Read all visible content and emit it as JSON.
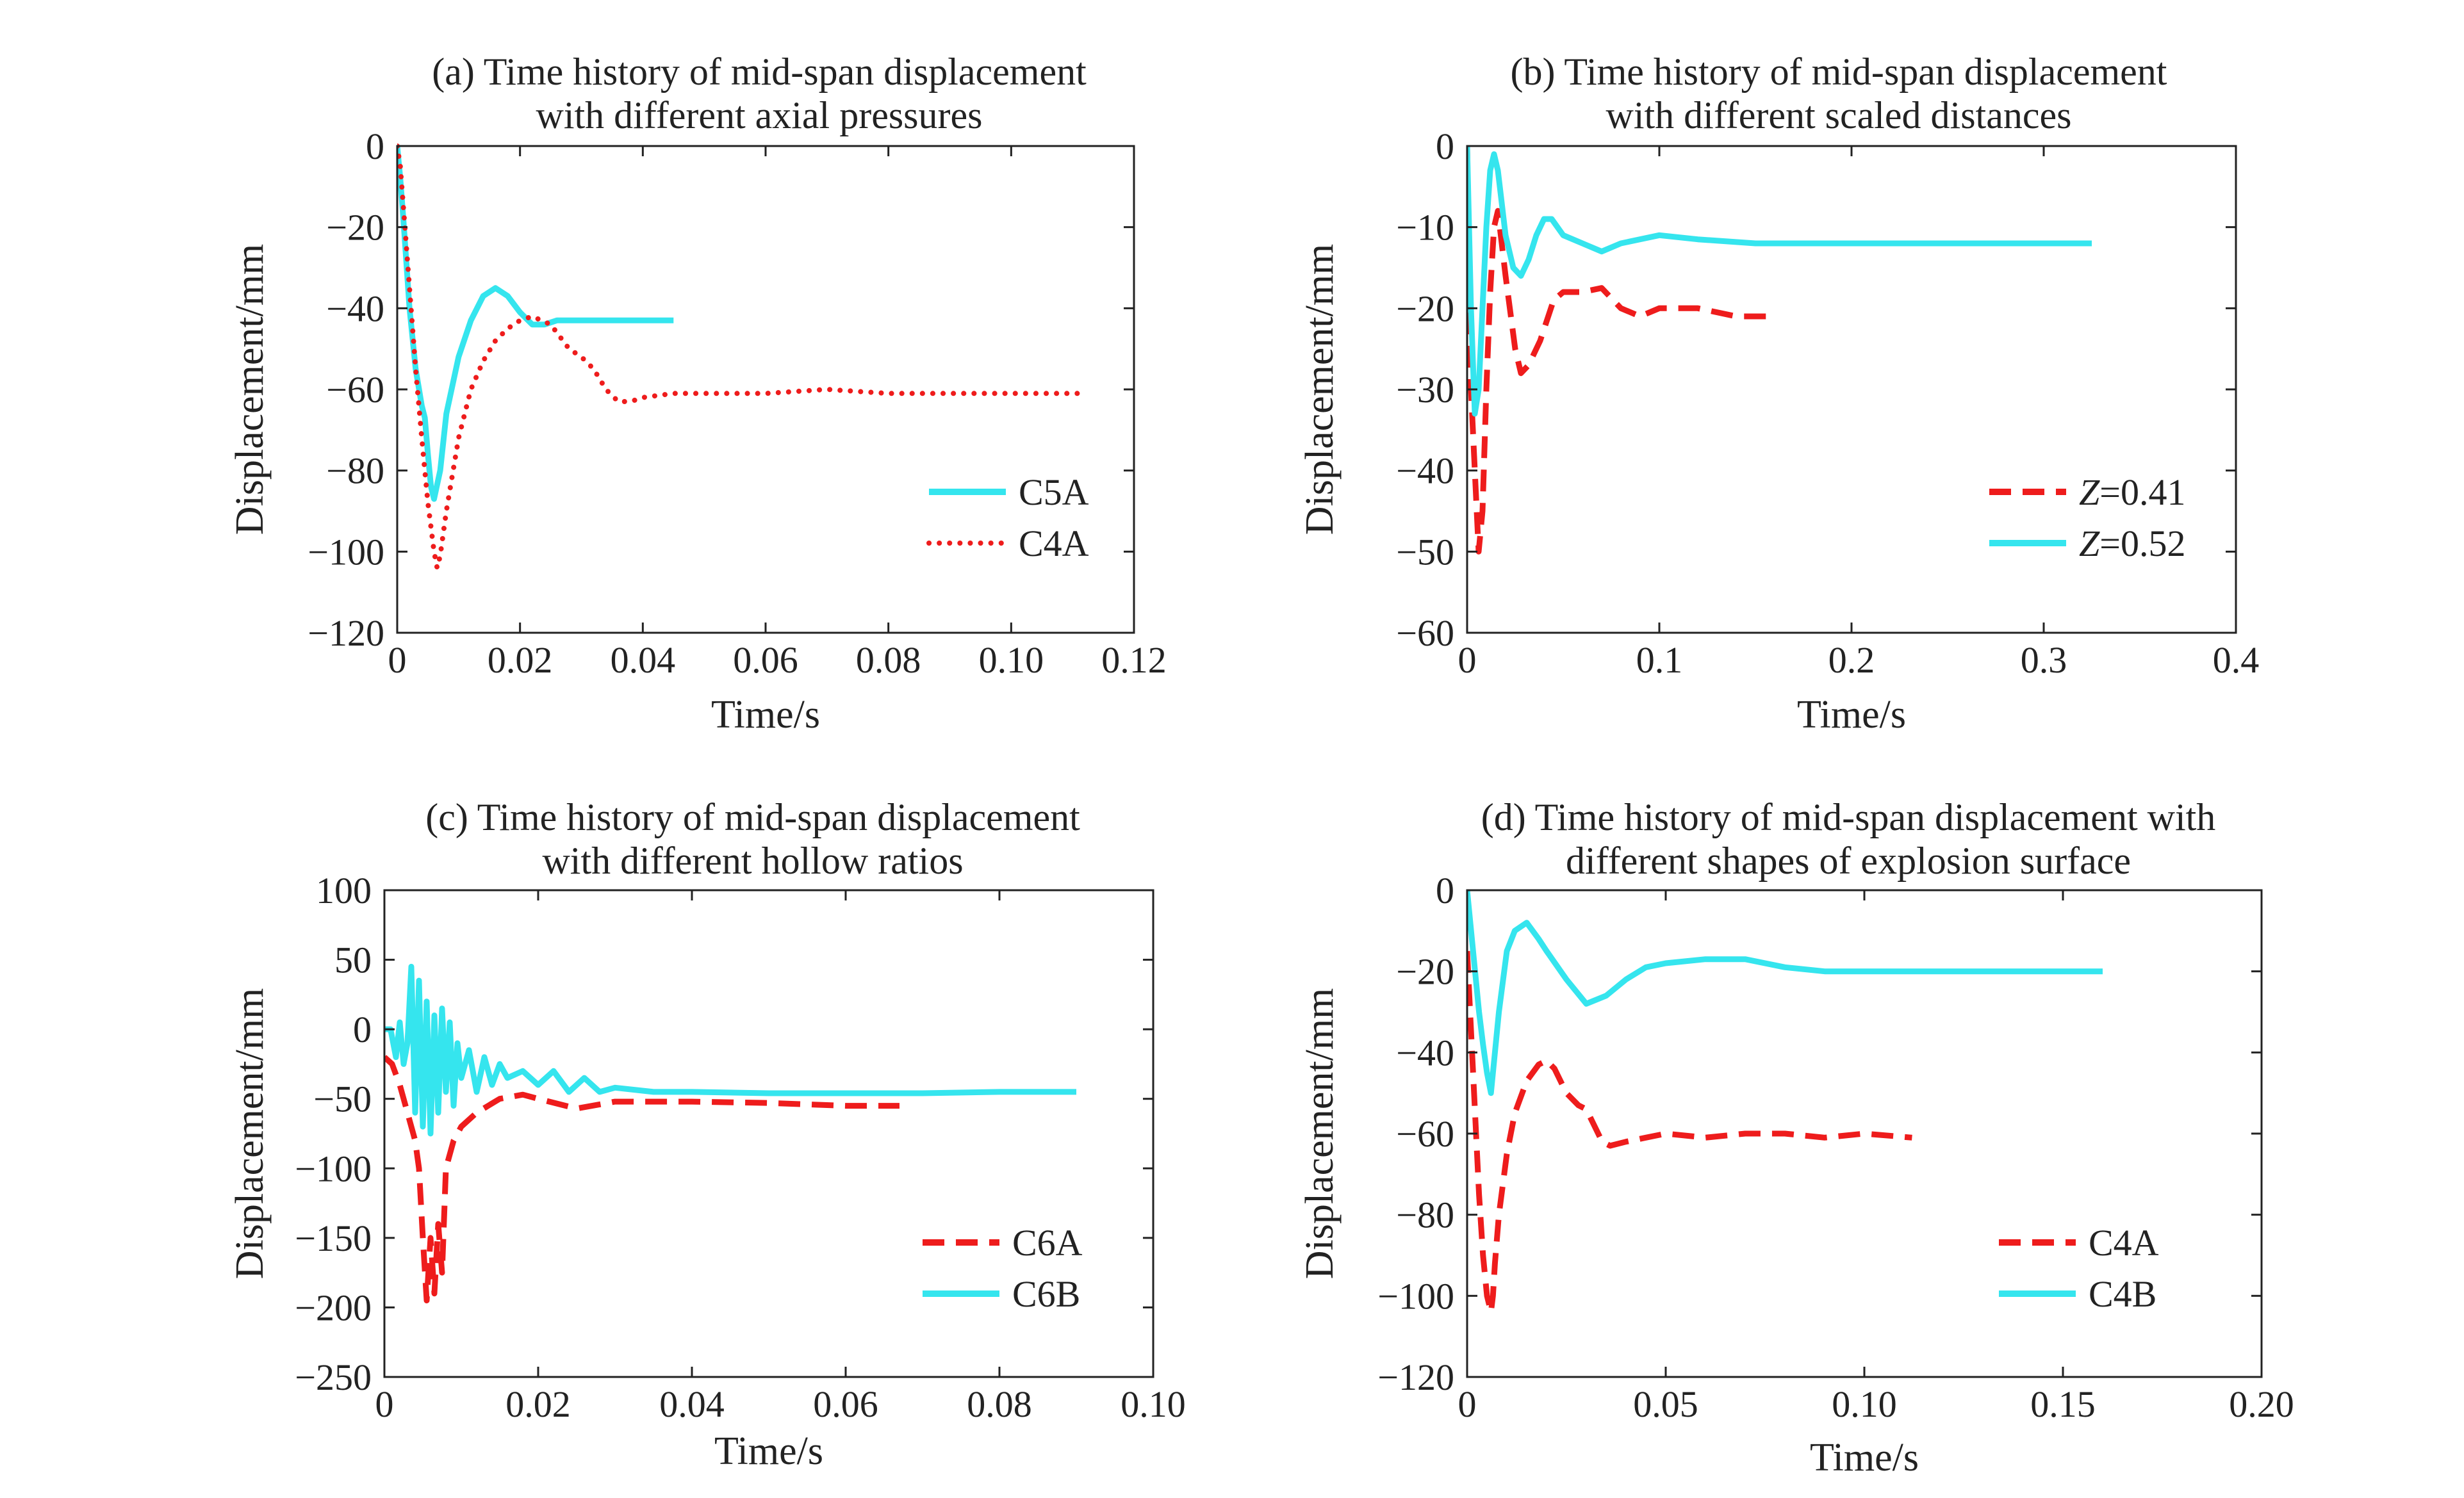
{
  "colors": {
    "red": "#ee1c1c",
    "cyan": "#35e5ee",
    "axis": "#222222"
  },
  "chart_data": [
    {
      "type": "line",
      "title_lines": [
        "(a) Time history of mid-span displacement",
        "with different axial pressures"
      ],
      "xlabel": "Time/s",
      "ylabel": "Displacement/mm",
      "xlim": [
        0,
        0.12
      ],
      "ylim": [
        -120,
        0
      ],
      "xticks": [
        0,
        0.02,
        0.04,
        0.06,
        0.08,
        0.1,
        0.12
      ],
      "xtick_labels": [
        "0",
        "0.02",
        "0.04",
        "0.06",
        "0.08",
        "0.10",
        "0.12"
      ],
      "yticks": [
        0,
        -20,
        -40,
        -60,
        -80,
        -100,
        -120
      ],
      "ytick_labels": [
        "0",
        "−20",
        "−40",
        "−60",
        "−80",
        "−100",
        "−120"
      ],
      "legend_position": "lower-right",
      "series": [
        {
          "name": "C5A",
          "color": "cyan",
          "style": "solid",
          "x": [
            0,
            0.0005,
            0.001,
            0.002,
            0.003,
            0.004,
            0.0045,
            0.005,
            0.0055,
            0.006,
            0.007,
            0.008,
            0.01,
            0.012,
            0.014,
            0.016,
            0.018,
            0.02,
            0.022,
            0.024,
            0.026,
            0.03,
            0.035,
            0.04,
            0.045
          ],
          "y": [
            0,
            -8,
            -18,
            -40,
            -55,
            -64,
            -67,
            -76,
            -84,
            -87,
            -80,
            -66,
            -52,
            -43,
            -37,
            -35,
            -37,
            -41,
            -44,
            -44,
            -43,
            -43,
            -43,
            -43,
            -43
          ]
        },
        {
          "name": "C4A",
          "color": "red",
          "style": "dotted",
          "x": [
            0,
            0.0005,
            0.001,
            0.002,
            0.003,
            0.004,
            0.005,
            0.006,
            0.0065,
            0.007,
            0.008,
            0.01,
            0.012,
            0.014,
            0.016,
            0.018,
            0.02,
            0.022,
            0.025,
            0.028,
            0.03,
            0.032,
            0.034,
            0.036,
            0.038,
            0.04,
            0.045,
            0.05,
            0.06,
            0.07,
            0.08,
            0.09,
            0.1,
            0.11,
            0.112
          ],
          "y": [
            0,
            -5,
            -15,
            -35,
            -55,
            -72,
            -88,
            -100,
            -104,
            -101,
            -90,
            -72,
            -60,
            -53,
            -48,
            -45,
            -43,
            -42,
            -44,
            -50,
            -52,
            -55,
            -60,
            -63,
            -63,
            -62,
            -61,
            -61,
            -61,
            -60,
            -61,
            -61,
            -61,
            -61,
            -61
          ]
        }
      ]
    },
    {
      "type": "line",
      "title_lines": [
        "(b) Time history of mid-span displacement",
        "with different scaled distances"
      ],
      "xlabel": "Time/s",
      "ylabel": "Displacement/mm",
      "xlim": [
        0,
        0.4
      ],
      "ylim": [
        -60,
        0
      ],
      "xticks": [
        0,
        0.1,
        0.2,
        0.3,
        0.4
      ],
      "xtick_labels": [
        "0",
        "0.1",
        "0.2",
        "0.3",
        "0.4"
      ],
      "yticks": [
        0,
        -10,
        -20,
        -30,
        -40,
        -50,
        -60
      ],
      "ytick_labels": [
        "0",
        "−10",
        "−20",
        "−30",
        "−40",
        "−50",
        "−60"
      ],
      "legend_position": "lower-right",
      "series": [
        {
          "name": "Z=0.41",
          "name_var": "Z",
          "name_rest": "=0.41",
          "color": "red",
          "style": "dashed",
          "x": [
            0,
            0.002,
            0.004,
            0.006,
            0.008,
            0.01,
            0.012,
            0.014,
            0.016,
            0.018,
            0.02,
            0.025,
            0.028,
            0.032,
            0.038,
            0.045,
            0.05,
            0.06,
            0.07,
            0.08,
            0.09,
            0.1,
            0.12,
            0.14,
            0.16
          ],
          "y": [
            0,
            -30,
            -40,
            -50,
            -45,
            -30,
            -18,
            -10,
            -8,
            -12,
            -16,
            -25,
            -28,
            -27,
            -24,
            -19,
            -18,
            -18,
            -17.5,
            -20,
            -21,
            -20,
            -20,
            -21,
            -21
          ]
        },
        {
          "name": "Z=0.52",
          "name_var": "Z",
          "name_rest": "=0.52",
          "color": "cyan",
          "style": "solid",
          "x": [
            0,
            0.001,
            0.002,
            0.004,
            0.006,
            0.008,
            0.01,
            0.012,
            0.014,
            0.016,
            0.018,
            0.02,
            0.024,
            0.028,
            0.032,
            0.036,
            0.04,
            0.044,
            0.05,
            0.06,
            0.07,
            0.08,
            0.1,
            0.12,
            0.15,
            0.2,
            0.25,
            0.3,
            0.325
          ],
          "y": [
            0,
            -10,
            -20,
            -33,
            -30,
            -20,
            -10,
            -3,
            -1,
            -3,
            -7,
            -11,
            -15,
            -16,
            -14,
            -11,
            -9,
            -9,
            -11,
            -12,
            -13,
            -12,
            -11,
            -11.5,
            -12,
            -12,
            -12,
            -12,
            -12
          ]
        }
      ]
    },
    {
      "type": "line",
      "title_lines": [
        "(c) Time history of mid-span displacement",
        "with different hollow ratios"
      ],
      "xlabel": "Time/s",
      "ylabel": "Displacement/mm",
      "xlim": [
        0,
        0.1
      ],
      "ylim": [
        -250,
        100
      ],
      "xticks": [
        0,
        0.02,
        0.04,
        0.06,
        0.08,
        0.1
      ],
      "xtick_labels": [
        "0",
        "0.02",
        "0.04",
        "0.06",
        "0.08",
        "0.10"
      ],
      "yticks": [
        100,
        50,
        0,
        -50,
        -100,
        -150,
        -200,
        -250
      ],
      "ytick_labels": [
        "100",
        "50",
        "0",
        "−50",
        "−100",
        "−150",
        "−200",
        "−250"
      ],
      "legend_position": "lower-right",
      "series": [
        {
          "name": "C6A",
          "color": "red",
          "style": "dashed",
          "x": [
            0,
            0.001,
            0.002,
            0.003,
            0.004,
            0.0045,
            0.005,
            0.0055,
            0.006,
            0.0065,
            0.007,
            0.0075,
            0.008,
            0.009,
            0.01,
            0.012,
            0.015,
            0.018,
            0.02,
            0.025,
            0.03,
            0.04,
            0.05,
            0.06,
            0.067
          ],
          "y": [
            -20,
            -25,
            -40,
            -60,
            -80,
            -100,
            -150,
            -195,
            -150,
            -190,
            -140,
            -175,
            -100,
            -80,
            -70,
            -60,
            -50,
            -47,
            -50,
            -57,
            -52,
            -52,
            -53,
            -55,
            -55
          ]
        },
        {
          "name": "C6B",
          "color": "cyan",
          "style": "solid",
          "x": [
            0,
            0.0008,
            0.0015,
            0.002,
            0.0025,
            0.003,
            0.0035,
            0.004,
            0.0045,
            0.005,
            0.0055,
            0.006,
            0.0065,
            0.007,
            0.0075,
            0.008,
            0.0085,
            0.009,
            0.0095,
            0.01,
            0.011,
            0.012,
            0.013,
            0.014,
            0.015,
            0.016,
            0.018,
            0.02,
            0.022,
            0.024,
            0.026,
            0.028,
            0.03,
            0.035,
            0.04,
            0.05,
            0.06,
            0.07,
            0.08,
            0.09
          ],
          "y": [
            0,
            0,
            -20,
            5,
            -25,
            -10,
            45,
            -60,
            35,
            -70,
            20,
            -75,
            10,
            -60,
            15,
            -45,
            5,
            -55,
            -10,
            -35,
            -15,
            -45,
            -20,
            -40,
            -25,
            -35,
            -30,
            -40,
            -30,
            -45,
            -35,
            -45,
            -42,
            -45,
            -45,
            -46,
            -46,
            -46,
            -45,
            -45
          ]
        }
      ]
    },
    {
      "type": "line",
      "title_lines": [
        "(d) Time history of mid-span displacement with",
        "different shapes of explosion surface"
      ],
      "xlabel": "Time/s",
      "ylabel": "Displacement/mm",
      "xlim": [
        0,
        0.2
      ],
      "ylim": [
        -120,
        0
      ],
      "xticks": [
        0,
        0.05,
        0.1,
        0.15,
        0.2
      ],
      "xtick_labels": [
        "0",
        "0.05",
        "0.10",
        "0.15",
        "0.20"
      ],
      "yticks": [
        0,
        -20,
        -40,
        -60,
        -80,
        -100,
        -120
      ],
      "ytick_labels": [
        "0",
        "−20",
        "−40",
        "−60",
        "−80",
        "−100",
        "−120"
      ],
      "legend_position": "lower-right",
      "series": [
        {
          "name": "C4A",
          "color": "red",
          "style": "dashed",
          "x": [
            0,
            0.001,
            0.002,
            0.003,
            0.004,
            0.005,
            0.006,
            0.0065,
            0.007,
            0.008,
            0.01,
            0.012,
            0.015,
            0.018,
            0.02,
            0.022,
            0.025,
            0.028,
            0.03,
            0.032,
            0.034,
            0.036,
            0.04,
            0.045,
            0.05,
            0.06,
            0.07,
            0.08,
            0.09,
            0.1,
            0.112
          ],
          "y": [
            -15,
            -35,
            -55,
            -75,
            -90,
            -100,
            -104,
            -100,
            -92,
            -80,
            -65,
            -55,
            -47,
            -43,
            -42,
            -44,
            -50,
            -53,
            -54,
            -58,
            -62,
            -63,
            -62,
            -61,
            -60,
            -61,
            -60,
            -60,
            -61,
            -60,
            -61
          ]
        },
        {
          "name": "C4B",
          "color": "cyan",
          "style": "solid",
          "x": [
            0,
            0.001,
            0.002,
            0.003,
            0.004,
            0.005,
            0.006,
            0.008,
            0.01,
            0.012,
            0.015,
            0.018,
            0.02,
            0.025,
            0.03,
            0.035,
            0.04,
            0.045,
            0.05,
            0.06,
            0.07,
            0.08,
            0.09,
            0.1,
            0.12,
            0.14,
            0.16
          ],
          "y": [
            0,
            -10,
            -20,
            -30,
            -38,
            -45,
            -50,
            -30,
            -15,
            -10,
            -8,
            -12,
            -15,
            -22,
            -28,
            -26,
            -22,
            -19,
            -18,
            -17,
            -17,
            -19,
            -20,
            -20,
            -20,
            -20,
            -20
          ]
        }
      ]
    }
  ]
}
